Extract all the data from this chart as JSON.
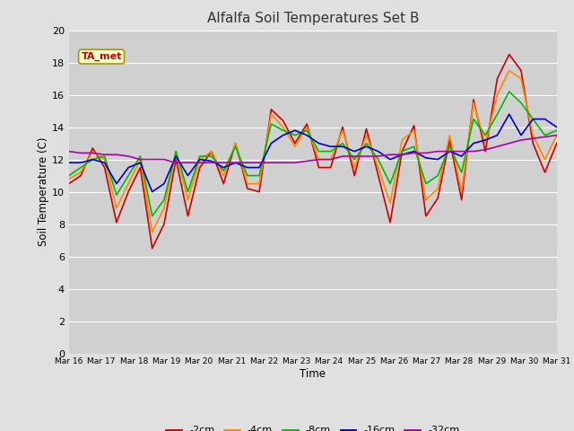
{
  "title": "Alfalfa Soil Temperatures Set B",
  "xlabel": "Time",
  "ylabel": "Soil Temperature (C)",
  "annotation": "TA_met",
  "ylim": [
    0,
    20
  ],
  "yticks": [
    0,
    2,
    4,
    6,
    8,
    10,
    12,
    14,
    16,
    18,
    20
  ],
  "series_colors": [
    "#cc0000",
    "#ff8800",
    "#00bb00",
    "#0000cc",
    "#aa00aa"
  ],
  "series_labels": [
    "-2cm",
    "-4cm",
    "-8cm",
    "-16cm",
    "-32cm"
  ],
  "x_labels": [
    "Mar 16",
    "Mar 17",
    "Mar 18",
    "Mar 19",
    "Mar 20",
    "Mar 21",
    "Mar 22",
    "Mar 23",
    "Mar 24",
    "Mar 25",
    "Mar 26",
    "Mar 27",
    "Mar 28",
    "Mar 29",
    "Mar 30",
    "Mar 31"
  ],
  "series": {
    "-2cm": [
      10.5,
      11.0,
      12.7,
      11.5,
      8.1,
      10.0,
      11.5,
      6.5,
      8.0,
      12.0,
      8.5,
      11.5,
      12.5,
      10.5,
      13.0,
      10.2,
      10.0,
      15.1,
      14.4,
      13.0,
      14.2,
      11.5,
      11.5,
      14.0,
      11.0,
      13.9,
      11.0,
      8.1,
      12.5,
      14.1,
      8.5,
      9.6,
      13.2,
      9.5,
      15.7,
      12.5,
      17.0,
      18.5,
      17.5,
      13.0,
      11.2,
      13.0
    ],
    "-4cm": [
      10.8,
      11.2,
      12.5,
      12.0,
      9.0,
      10.5,
      12.0,
      7.5,
      9.0,
      12.5,
      9.5,
      12.0,
      12.5,
      11.0,
      13.0,
      10.5,
      10.5,
      14.8,
      14.0,
      12.8,
      14.0,
      12.0,
      12.0,
      13.8,
      11.5,
      13.5,
      11.5,
      9.3,
      13.2,
      13.8,
      9.5,
      10.2,
      13.5,
      10.0,
      15.5,
      13.0,
      16.0,
      17.5,
      17.0,
      13.5,
      12.0,
      13.5
    ],
    "-8cm": [
      11.0,
      11.5,
      12.0,
      12.2,
      9.8,
      11.0,
      12.2,
      8.5,
      9.5,
      12.5,
      10.0,
      12.2,
      12.2,
      11.3,
      12.8,
      11.0,
      11.0,
      14.2,
      13.8,
      13.5,
      13.8,
      12.5,
      12.5,
      13.0,
      12.0,
      13.0,
      12.0,
      10.5,
      12.5,
      12.8,
      10.5,
      11.0,
      12.8,
      11.2,
      14.5,
      13.5,
      14.8,
      16.2,
      15.5,
      14.5,
      13.5,
      13.8
    ],
    "-16cm": [
      11.8,
      11.8,
      12.0,
      11.8,
      10.5,
      11.5,
      11.8,
      10.0,
      10.5,
      12.2,
      11.0,
      12.0,
      11.9,
      11.5,
      11.8,
      11.5,
      11.5,
      13.0,
      13.5,
      13.8,
      13.5,
      13.0,
      12.8,
      12.8,
      12.5,
      12.8,
      12.5,
      12.0,
      12.3,
      12.5,
      12.1,
      12.0,
      12.5,
      12.2,
      13.0,
      13.2,
      13.5,
      14.8,
      13.5,
      14.5,
      14.5,
      14.0
    ],
    "-32cm": [
      12.5,
      12.4,
      12.4,
      12.3,
      12.3,
      12.2,
      12.0,
      12.0,
      12.0,
      11.8,
      11.8,
      11.8,
      11.8,
      11.8,
      11.8,
      11.8,
      11.8,
      11.8,
      11.8,
      11.8,
      11.9,
      12.0,
      12.0,
      12.2,
      12.2,
      12.2,
      12.2,
      12.3,
      12.3,
      12.4,
      12.4,
      12.5,
      12.5,
      12.5,
      12.5,
      12.6,
      12.8,
      13.0,
      13.2,
      13.3,
      13.4,
      13.5
    ]
  }
}
